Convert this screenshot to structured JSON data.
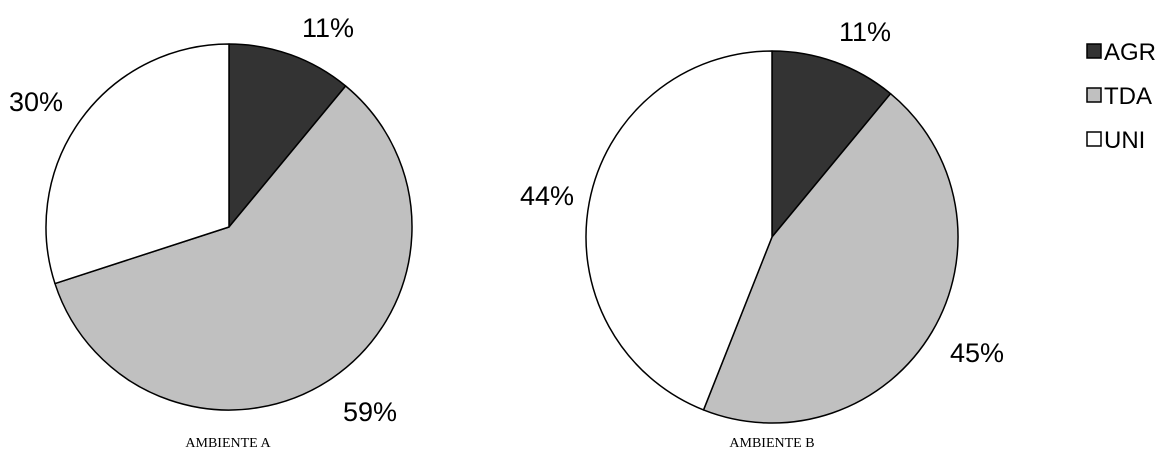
{
  "chart_data": [
    {
      "type": "pie",
      "caption": "AMBIENTE A",
      "slices": [
        {
          "name": "AGR",
          "value": 11,
          "label": "11%"
        },
        {
          "name": "TDA",
          "value": 59,
          "label": "59%"
        },
        {
          "name": "UNI",
          "value": 30,
          "label": "30%"
        }
      ]
    },
    {
      "type": "pie",
      "caption": "AMBIENTE B",
      "slices": [
        {
          "name": "AGR",
          "value": 11,
          "label": "11%"
        },
        {
          "name": "TDA",
          "value": 45,
          "label": "45%"
        },
        {
          "name": "UNI",
          "value": 44,
          "label": "44%"
        }
      ]
    }
  ],
  "legend": [
    {
      "name": "AGR",
      "color": "#333333"
    },
    {
      "name": "TDA",
      "color": "#c0c0c0"
    },
    {
      "name": "UNI",
      "color": "#ffffff"
    }
  ],
  "colors": {
    "outline": "#000000"
  }
}
